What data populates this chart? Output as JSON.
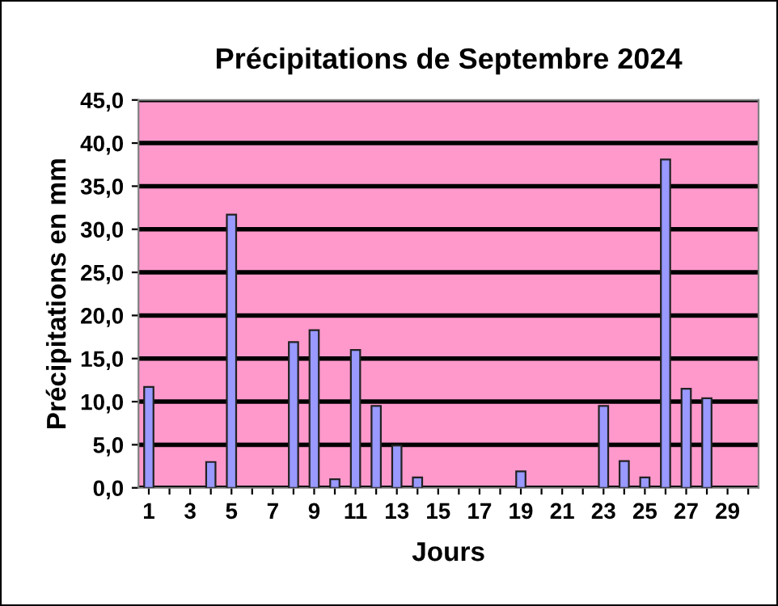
{
  "chart_data": {
    "type": "bar",
    "title": "Précipitations de Septembre 2024",
    "xlabel": "Jours",
    "ylabel": "Précipitations en mm",
    "categories": [
      "1",
      null,
      "3",
      null,
      "5",
      null,
      "7",
      null,
      "9",
      null,
      "11",
      null,
      "13",
      null,
      "15",
      null,
      "17",
      null,
      "19",
      null,
      "21",
      null,
      "23",
      null,
      "25",
      null,
      "27",
      null,
      "29",
      null
    ],
    "values": [
      11.7,
      null,
      null,
      3.0,
      31.7,
      null,
      null,
      16.9,
      18.3,
      1.0,
      16.0,
      9.5,
      4.9,
      1.2,
      null,
      null,
      null,
      null,
      1.9,
      null,
      null,
      null,
      9.5,
      3.1,
      1.2,
      38.1,
      11.5,
      10.4,
      null,
      null
    ],
    "color": "#9999ff",
    "ylim": [
      0,
      45
    ],
    "yticks": [
      {
        "value": 0,
        "label": "0,0"
      },
      {
        "value": 5,
        "label": "5,0"
      },
      {
        "value": 10,
        "label": "10,0"
      },
      {
        "value": 15,
        "label": "15,0"
      },
      {
        "value": 20,
        "label": "20,0"
      },
      {
        "value": 25,
        "label": "25,0"
      },
      {
        "value": 30,
        "label": "30,0"
      },
      {
        "value": 35,
        "label": "35,0"
      },
      {
        "value": 40,
        "label": "40,0"
      },
      {
        "value": 45,
        "label": "45,0"
      }
    ],
    "grid": "y"
  }
}
